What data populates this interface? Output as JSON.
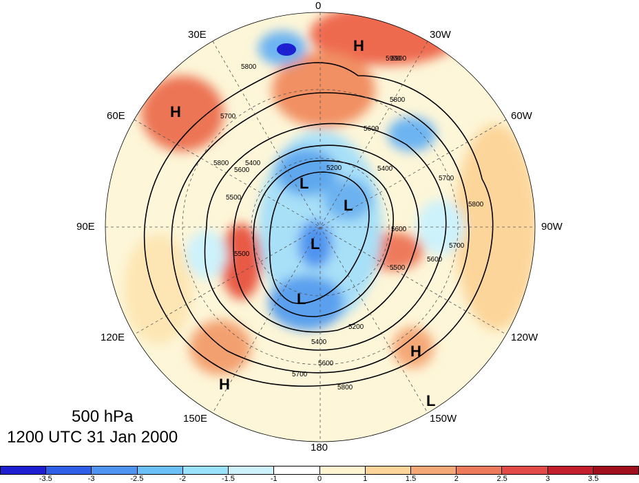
{
  "map": {
    "pressure_level": "500 hPa",
    "valid_time": "1200 UTC 31 Jan 2000",
    "lon_labels": {
      "lon_0": "0",
      "lon_30w": "30W",
      "lon_60w": "60W",
      "lon_90w": "90W",
      "lon_120w": "120W",
      "lon_150w": "150W",
      "lon_180": "180",
      "lon_150e": "150E",
      "lon_120e": "120E",
      "lon_90e": "90E",
      "lon_60e": "60E",
      "lon_30e": "30E"
    },
    "highs_lows": [
      {
        "symbol": "H"
      },
      {
        "symbol": "H"
      },
      {
        "symbol": "H"
      },
      {
        "symbol": "H"
      },
      {
        "symbol": "L"
      },
      {
        "symbol": "L"
      },
      {
        "symbol": "L"
      },
      {
        "symbol": "L"
      },
      {
        "symbol": "L"
      }
    ],
    "contour_labels": [
      "5800",
      "5900",
      "5800",
      "5600",
      "5700",
      "5800",
      "5600",
      "5500",
      "5400",
      "5600",
      "5500",
      "5700",
      "5200",
      "5400",
      "5600",
      "5700",
      "5800",
      "5200",
      "5400",
      "5500",
      "5600",
      "5700",
      "5800",
      "5900"
    ]
  },
  "colorbar": {
    "colors": [
      "#1d1fd0",
      "#2f5fe6",
      "#4f94f0",
      "#6cc0f8",
      "#9ae2fb",
      "#cdf2fb",
      "#ffffff",
      "#fff4d0",
      "#fcd59a",
      "#f5a877",
      "#ee7a5c",
      "#e24a47",
      "#c21e2c",
      "#a00f1c"
    ],
    "tick_labels": [
      "-3.5",
      "-3",
      "-2.5",
      "-2",
      "-1.5",
      "-1",
      "0",
      "1",
      "1.5",
      "2",
      "2.5",
      "3",
      "3.5"
    ]
  }
}
